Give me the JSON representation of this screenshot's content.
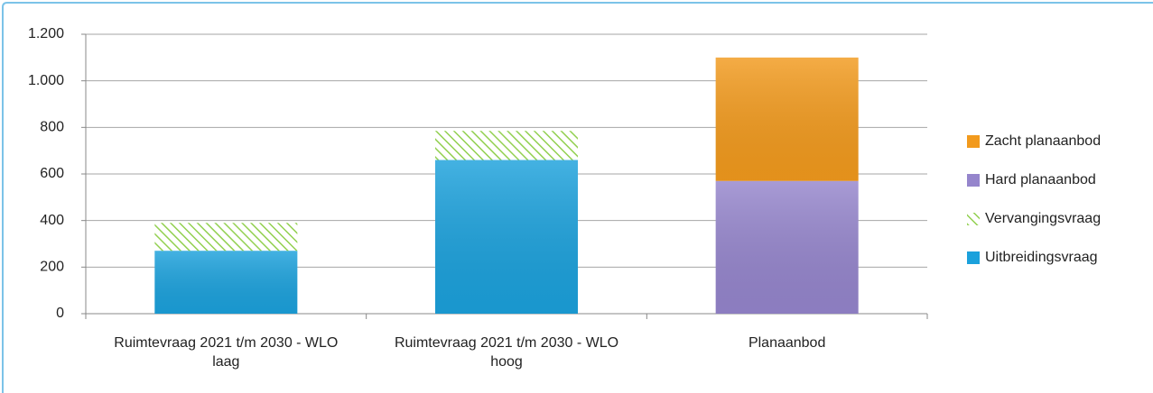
{
  "chart_data": {
    "type": "stacked_bar",
    "categories": [
      "Ruimtevraag 2021 t/m 2030 - WLO laag",
      "Ruimtevraag 2021 t/m 2030 - WLO hoog",
      "Planaanbod"
    ],
    "series": [
      {
        "name": "Uitbreidingsvraag",
        "color": "#1ba1dc",
        "values": [
          270,
          660,
          null
        ]
      },
      {
        "name": "Vervangingsvraag",
        "color": "#92d050",
        "pattern": "diagonal-hatch",
        "values": [
          120,
          125,
          null
        ]
      },
      {
        "name": "Hard planaanbod",
        "color": "#9585cc",
        "values": [
          null,
          null,
          570
        ]
      },
      {
        "name": "Zacht planaanbod",
        "color": "#f29a1d",
        "values": [
          null,
          null,
          530
        ]
      }
    ],
    "ylim": [
      0,
      1200
    ],
    "yticks": [
      0,
      200,
      400,
      600,
      800,
      {
        "value": 1000,
        "label": "1.000"
      },
      {
        "value": 1200,
        "label": "1.200"
      }
    ],
    "grid": true,
    "legend": "right"
  }
}
